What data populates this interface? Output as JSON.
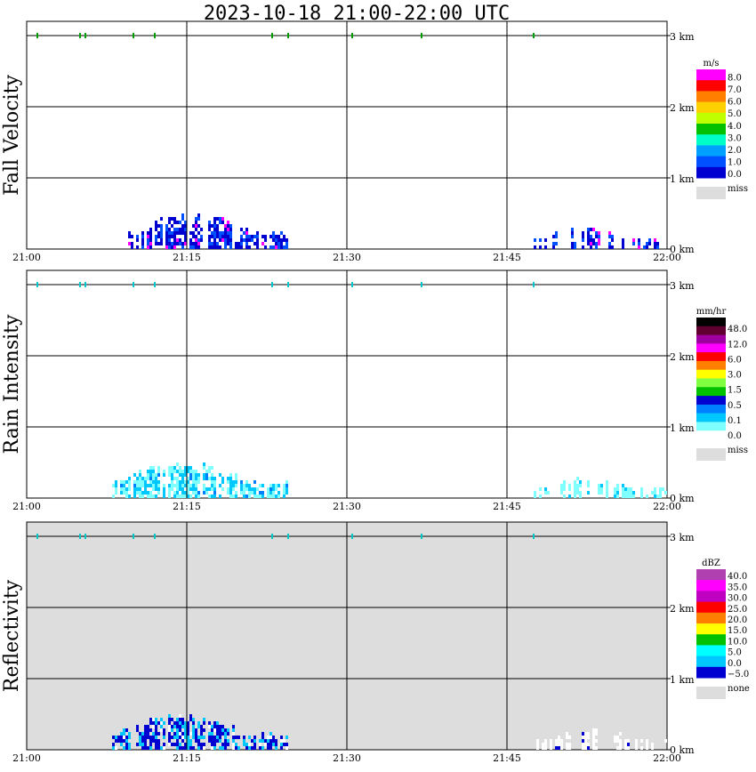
{
  "title": "2023-10-18  21:00-22:00 UTC",
  "x_ticks": [
    "21:00",
    "21:15",
    "21:30",
    "21:45",
    "22:00"
  ],
  "y_ticks": [
    "0 km",
    "1 km",
    "2 km",
    "3 km"
  ],
  "chart_data": [
    {
      "type": "heatmap",
      "ylabel": "Fall Velocity",
      "unit": "m/s",
      "colorbar": {
        "labels": [
          "8.0",
          "7.0",
          "6.0",
          "5.0",
          "4.0",
          "3.0",
          "2.0",
          "1.0",
          "0.0"
        ],
        "colors": [
          "#ff00ff",
          "#ff0000",
          "#ff8000",
          "#ffd000",
          "#c0ff00",
          "#00c000",
          "#00ffc8",
          "#00a0ff",
          "#0050ff",
          "#0000d0"
        ],
        "miss_label": "miss",
        "miss_color": "#dddddd"
      },
      "background": "#ffffff",
      "xlim": [
        "21:00",
        "22:00"
      ],
      "ylim_km": [
        0,
        3.2
      ],
      "echo_segments": [
        {
          "t_start": 9.5,
          "t_end": 24.5,
          "top_km": 0.5,
          "dominant": "#0000d0",
          "secondary": "#0050ff",
          "accent": "#ff00ff"
        },
        {
          "t_start": 47.5,
          "t_end": 60,
          "top_km": 0.28,
          "dominant": "#0000d0",
          "secondary": "#0050ff",
          "accent": "#ff00ff"
        }
      ],
      "cloud_top_marks_min": [
        1,
        5,
        5.5,
        10,
        12,
        23,
        24.5,
        30.5,
        37,
        47.5
      ],
      "cloud_top_km": 3.0,
      "cloud_top_color": "#00a000"
    },
    {
      "type": "heatmap",
      "ylabel": "Rain Intensity",
      "unit": "mm/hr",
      "colorbar": {
        "labels": [
          "48.0",
          "12.0",
          "6.0",
          "3.0",
          "1.5",
          "0.5",
          "0.1",
          "0.0"
        ],
        "colors": [
          "#000000",
          "#600030",
          "#a000a0",
          "#ff00ff",
          "#ff0000",
          "#ff8000",
          "#ffff00",
          "#80ff40",
          "#00c000",
          "#0000d0",
          "#0080ff",
          "#00c8ff",
          "#80ffff",
          "#ffffff"
        ],
        "miss_label": "miss",
        "miss_color": "#dddddd"
      },
      "background": "#ffffff",
      "xlim": [
        "21:00",
        "22:00"
      ],
      "ylim_km": [
        0,
        3.2
      ],
      "echo_segments": [
        {
          "t_start": 8,
          "t_end": 24.5,
          "top_km": 0.5,
          "dominant": "#80ffff",
          "secondary": "#00c8ff",
          "accent": "#0080ff"
        },
        {
          "t_start": 47.5,
          "t_end": 60,
          "top_km": 0.28,
          "dominant": "#80ffff",
          "secondary": "#80ffff",
          "accent": "#00c8ff"
        }
      ],
      "cloud_top_marks_min": [
        1,
        5,
        5.5,
        10,
        12,
        23,
        24.5,
        30.5,
        37,
        47.5
      ],
      "cloud_top_km": 3.0,
      "cloud_top_color": "#00c8c8"
    },
    {
      "type": "heatmap",
      "ylabel": "Reflectivity",
      "unit": "dBZ",
      "colorbar": {
        "labels": [
          "40.0",
          "35.0",
          "30.0",
          "25.0",
          "20.0",
          "15.0",
          "10.0",
          "5.0",
          "0.0",
          "−5.0"
        ],
        "colors": [
          "#b040b0",
          "#ff00ff",
          "#c000c0",
          "#ff0000",
          "#ff8000",
          "#ffff00",
          "#00c000",
          "#00ffff",
          "#00c8ff",
          "#0000d0"
        ],
        "miss_label": "none",
        "miss_color": "#dddddd"
      },
      "background": "#dddddd",
      "xlim": [
        "21:00",
        "22:00"
      ],
      "ylim_km": [
        0,
        3.2
      ],
      "echo_segments": [
        {
          "t_start": 8,
          "t_end": 24.5,
          "top_km": 0.5,
          "dominant": "#0000d0",
          "secondary": "#00c8ff",
          "accent": "#ffffff"
        },
        {
          "t_start": 47.5,
          "t_end": 60,
          "top_km": 0.28,
          "dominant": "#ffffff",
          "secondary": "#ffffff",
          "accent": "#0000d0"
        }
      ],
      "cloud_top_marks_min": [
        1,
        5,
        5.5,
        10,
        12,
        23,
        24.5,
        30.5,
        37,
        47.5
      ],
      "cloud_top_km": 3.0,
      "cloud_top_color": "#00c8c8"
    }
  ]
}
